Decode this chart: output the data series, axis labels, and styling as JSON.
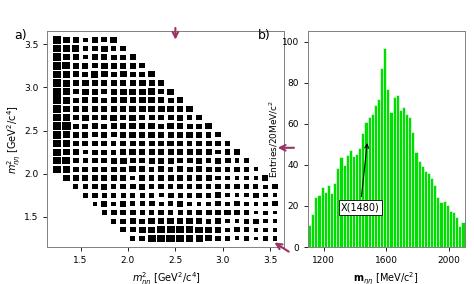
{
  "panel_a_label": "a)",
  "panel_b_label": "b)",
  "dalitz_xlabel": "$m^2_{\\eta\\eta}$ [GeV$^2$/c$^4$]",
  "dalitz_ylabel": "$m^2_{\\eta\\eta}$ [GeV$^2$/c$^4$]",
  "dalitz_xlim": [
    1.15,
    3.65
  ],
  "dalitz_ylim": [
    1.15,
    3.65
  ],
  "dalitz_xticks": [
    1.5,
    2.0,
    2.5,
    3.0,
    3.5
  ],
  "dalitz_yticks": [
    1.5,
    2.0,
    2.5,
    3.0,
    3.5
  ],
  "hist_xlabel": "$\\mathbf{m}_{\\eta\\eta}$ [MeV/c$^2$]",
  "hist_ylabel": "Entries/20MeV/c$^2$",
  "hist_xlim": [
    1100,
    2100
  ],
  "hist_ylim": [
    0,
    105
  ],
  "hist_xticks": [
    1200,
    1600,
    2000
  ],
  "hist_yticks": [
    0,
    20,
    40,
    60,
    80,
    100
  ],
  "hist_bar_color": "#00dd00",
  "hist_edge_color": "white",
  "annotation_text": "X(1480)",
  "arrow_magenta": "#993366",
  "seed": 12345
}
